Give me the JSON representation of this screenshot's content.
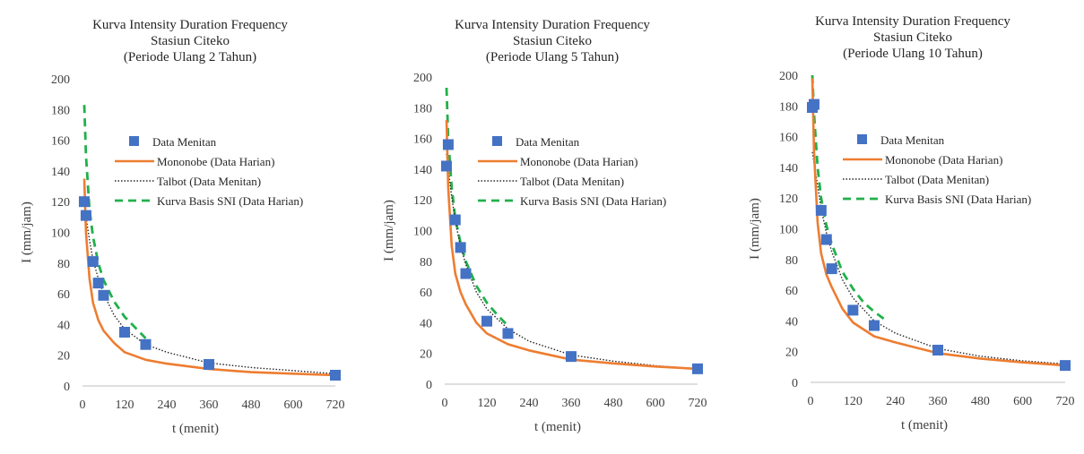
{
  "colors": {
    "data_menitan": "#4472C4",
    "mononobe": "#ED7D31",
    "talbot": "#262626",
    "kurva_basis_sni": "#21B04B",
    "axis_text": "#404040"
  },
  "chart_data": [
    {
      "type": "line",
      "title": [
        "Kurva Intensity Duration Frequency",
        "Stasiun Citeko",
        "(Periode Ulang 2 Tahun)"
      ],
      "xlabel": "t (menit)",
      "ylabel": "I (mm/jam)",
      "xlim": [
        0,
        720
      ],
      "ylim": [
        0,
        200
      ],
      "xticks": [
        "0",
        "120",
        "240",
        "360",
        "480",
        "600",
        "720"
      ],
      "yticks": [
        "0",
        "20",
        "40",
        "60",
        "80",
        "100",
        "120",
        "140",
        "160",
        "180",
        "200"
      ],
      "grid": false,
      "legend_position": "center-right",
      "series": [
        {
          "name": "Data Menitan",
          "style": "markers",
          "x": [
            5,
            10,
            30,
            45,
            60,
            120,
            180,
            360,
            720
          ],
          "y": [
            120,
            111,
            81,
            67,
            59,
            35,
            27,
            14,
            7
          ]
        },
        {
          "name": "Mononobe (Data Harian)",
          "style": "line",
          "x": [
            5,
            10,
            20,
            30,
            45,
            60,
            90,
            120,
            180,
            240,
            360,
            480,
            600,
            720
          ],
          "y": [
            135,
            100,
            70,
            54,
            43,
            36,
            28,
            22,
            17,
            14.5,
            11,
            9,
            8,
            7
          ]
        },
        {
          "name": "Talbot (Data Menitan)",
          "style": "dotted",
          "x": [
            5,
            10,
            20,
            30,
            45,
            60,
            90,
            120,
            180,
            240,
            360,
            480,
            600,
            720
          ],
          "y": [
            122,
            110,
            95,
            82,
            70,
            60,
            46,
            37,
            27,
            22,
            15,
            12,
            10,
            8
          ]
        },
        {
          "name": "Kurva Basis SNI (Data Harian)",
          "style": "dashed",
          "x": [
            5,
            10,
            20,
            30,
            45,
            60,
            90,
            120,
            150,
            180
          ],
          "y": [
            183,
            150,
            115,
            97,
            80,
            69,
            55,
            45,
            38,
            31
          ]
        }
      ]
    },
    {
      "type": "line",
      "title": [
        "Kurva Intensity Duration Frequency",
        "Stasiun Citeko",
        "(Periode Ulang 5 Tahun)"
      ],
      "xlabel": "t (menit)",
      "ylabel": "I (mm/jam)",
      "xlim": [
        0,
        720
      ],
      "ylim": [
        0,
        200
      ],
      "xticks": [
        "0",
        "120",
        "240",
        "360",
        "480",
        "600",
        "720"
      ],
      "yticks": [
        "0",
        "20",
        "40",
        "60",
        "80",
        "100",
        "120",
        "140",
        "160",
        "180",
        "200"
      ],
      "grid": false,
      "legend_position": "center-right",
      "series": [
        {
          "name": "Data Menitan",
          "style": "markers",
          "x": [
            5,
            10,
            30,
            45,
            60,
            120,
            180,
            360,
            720
          ],
          "y": [
            142,
            156,
            107,
            89,
            72,
            41,
            33,
            18,
            10
          ]
        },
        {
          "name": "Mononobe (Data Harian)",
          "style": "line",
          "x": [
            5,
            10,
            20,
            30,
            45,
            60,
            90,
            120,
            180,
            240,
            360,
            480,
            600,
            720
          ],
          "y": [
            172,
            128,
            90,
            72,
            60,
            52,
            40,
            33,
            26,
            22,
            16,
            13.5,
            11.5,
            10
          ]
        },
        {
          "name": "Talbot (Data Menitan)",
          "style": "dotted",
          "x": [
            5,
            10,
            20,
            30,
            45,
            60,
            90,
            120,
            180,
            240,
            360,
            480,
            600,
            720
          ],
          "y": [
            150,
            140,
            122,
            106,
            90,
            78,
            60,
            49,
            36,
            28,
            19,
            15,
            12,
            10
          ]
        },
        {
          "name": "Kurva Basis SNI (Data Harian)",
          "style": "dashed",
          "x": [
            5,
            10,
            20,
            30,
            45,
            60,
            90,
            120,
            150,
            180
          ],
          "y": [
            193,
            160,
            128,
            108,
            92,
            80,
            64,
            53,
            45,
            38
          ]
        }
      ]
    },
    {
      "type": "line",
      "title": [
        "Kurva Intensity Duration Frequency",
        "Stasiun Citeko",
        "(Periode Ulang 10 Tahun)"
      ],
      "xlabel": "t (menit)",
      "ylabel": "I (mm/jam)",
      "xlim": [
        0,
        720
      ],
      "ylim": [
        0,
        200
      ],
      "xticks": [
        "0",
        "120",
        "240",
        "360",
        "480",
        "600",
        "720"
      ],
      "yticks": [
        "0",
        "20",
        "40",
        "60",
        "80",
        "100",
        "120",
        "140",
        "160",
        "180",
        "200"
      ],
      "grid": false,
      "legend_position": "center-right",
      "series": [
        {
          "name": "Data Menitan",
          "style": "markers",
          "x": [
            5,
            10,
            30,
            45,
            60,
            120,
            180,
            360,
            720
          ],
          "y": [
            179,
            181,
            112,
            93,
            74,
            47,
            37,
            21,
            11
          ]
        },
        {
          "name": "Mononobe (Data Harian)",
          "style": "line",
          "x": [
            5,
            10,
            20,
            30,
            45,
            60,
            90,
            120,
            180,
            240,
            360,
            480,
            600,
            720
          ],
          "y": [
            198,
            150,
            104,
            84,
            70,
            62,
            48,
            39,
            30,
            26,
            19,
            15.5,
            13,
            11
          ]
        },
        {
          "name": "Talbot (Data Menitan)",
          "style": "dotted",
          "x": [
            5,
            10,
            20,
            30,
            45,
            60,
            90,
            120,
            180,
            240,
            360,
            480,
            600,
            720
          ],
          "y": [
            150,
            143,
            128,
            113,
            97,
            85,
            67,
            55,
            40,
            32,
            22,
            17,
            14,
            12
          ]
        },
        {
          "name": "Kurva Basis SNI (Data Harian)",
          "style": "dashed",
          "x": [
            5,
            10,
            20,
            30,
            45,
            60,
            90,
            120,
            150,
            180,
            210
          ],
          "y": [
            200,
            175,
            140,
            120,
            102,
            90,
            72,
            61,
            52,
            46,
            41
          ]
        }
      ]
    }
  ]
}
